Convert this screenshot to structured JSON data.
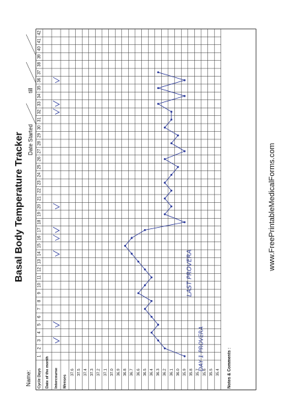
{
  "header": {
    "title": "Basal Body Temperature Tracker",
    "name_label": "Name:",
    "date_started_label": "Date Started",
    "till_label": "till"
  },
  "table": {
    "row_labels": {
      "cycle_days": "Cycle Days",
      "date": "Date of the month",
      "intercourse": "Intercourse",
      "menses": "Menses"
    },
    "cycle_days": [
      1,
      2,
      3,
      4,
      5,
      6,
      7,
      8,
      9,
      10,
      11,
      12,
      13,
      14,
      15,
      16,
      17,
      18,
      19,
      20,
      21,
      22,
      23,
      24,
      25,
      26,
      27,
      28,
      29,
      30,
      31,
      32,
      33,
      34,
      35,
      36,
      37,
      38,
      39,
      40,
      41,
      42
    ],
    "temperature_scale": [
      37.6,
      37.5,
      37.4,
      37.3,
      37.2,
      37.1,
      {
        "value": 37,
        "label": "37.0"
      },
      36.9,
      36.8,
      36.7,
      36.6,
      36.5,
      36.4,
      36.3,
      36.2,
      36.1,
      {
        "value": 36,
        "label": "36.0"
      },
      35.9,
      35.8,
      35.7,
      35.6,
      35.5,
      35.4
    ],
    "temperatures": [
      35.9,
      36.2,
      36.3,
      36.4,
      36.3,
      36.4,
      36.5,
      36.4,
      36.6,
      36.5,
      36.4,
      36.5,
      36.6,
      36.7,
      36.8,
      36.7,
      36.5,
      35.9,
      36.2,
      36.1,
      36.2,
      36.1,
      36.2,
      36.1,
      36,
      36.2,
      35.9,
      36.1,
      36,
      36.2,
      36.1,
      36.1,
      36.3,
      35.9,
      36.3,
      35.9,
      36.3,
      null,
      null,
      null,
      null,
      null
    ],
    "notes_label": "Notes & Comments :"
  },
  "annotations": [
    "LAST PROVERA",
    "DAY 1 PROVERA"
  ],
  "footer": {
    "website": "www.FreePrintableMedicalForms.com"
  }
}
